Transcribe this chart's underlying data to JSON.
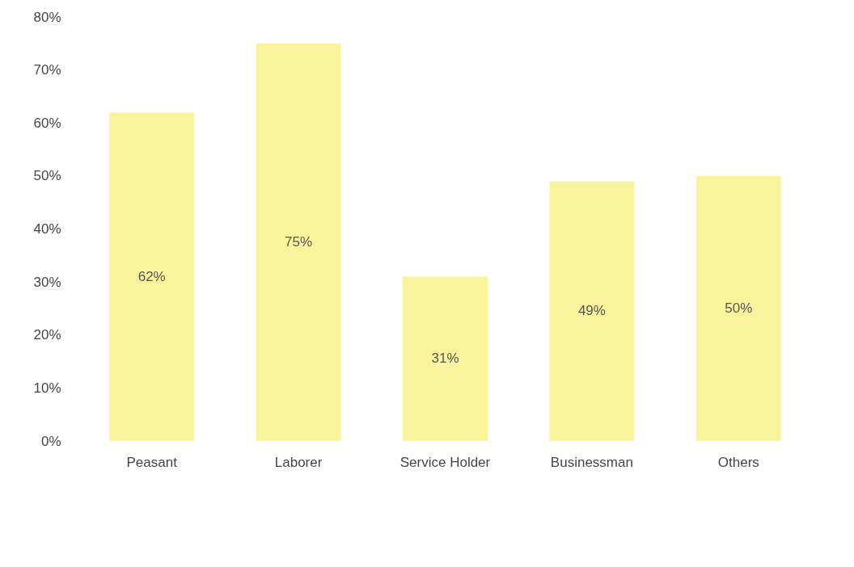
{
  "chart_data": {
    "type": "bar",
    "categories": [
      "Peasant",
      "Laborer",
      "Service Holder",
      "Businessman",
      "Others"
    ],
    "values": [
      62,
      75,
      31,
      49,
      50
    ],
    "value_labels": [
      "62%",
      "75%",
      "31%",
      "49%",
      "50%"
    ],
    "color": "#f9f39b",
    "ylim": [
      0,
      80
    ],
    "yticks": [
      {
        "value": 0,
        "label": "0%"
      },
      {
        "value": 10,
        "label": "10%"
      },
      {
        "value": 20,
        "label": "20%"
      },
      {
        "value": 30,
        "label": "30%"
      },
      {
        "value": 40,
        "label": "40%"
      },
      {
        "value": 50,
        "label": "50%"
      },
      {
        "value": 60,
        "label": "60%"
      },
      {
        "value": 70,
        "label": "70%"
      },
      {
        "value": 80,
        "label": "80%"
      }
    ],
    "grid": false
  }
}
